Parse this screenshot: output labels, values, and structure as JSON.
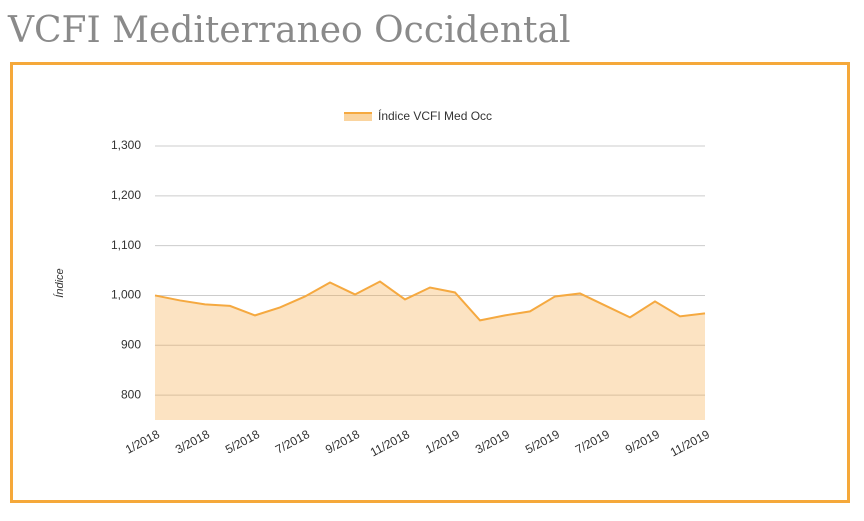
{
  "page_title": "VCFI Mediterraneo Occidental",
  "chart_data": {
    "type": "area",
    "y_label": "Índice",
    "categories": [
      "1/2018",
      null,
      "3/2018",
      null,
      "5/2018",
      null,
      "7/2018",
      null,
      "9/2018",
      null,
      "11/2018",
      null,
      "1/2019",
      null,
      "3/2019",
      null,
      "5/2019",
      null,
      "7/2019",
      null,
      "9/2019",
      null,
      "11/2019"
    ],
    "series": [
      {
        "name": "Índice VCFI Med Occ",
        "color": "#f5a940",
        "values": [
          1000,
          990,
          982,
          979,
          960,
          976,
          998,
          1026,
          1002,
          1028,
          992,
          1016,
          1006,
          950,
          960,
          968,
          998,
          1004,
          980,
          956,
          988,
          958,
          964
        ]
      }
    ],
    "ylim": [
      750,
      1300
    ],
    "yticks": [
      800,
      900,
      {
        "value": 1000,
        "label": "1,000"
      },
      {
        "value": 1100,
        "label": "1,100"
      },
      {
        "value": 1200,
        "label": "1,200"
      },
      {
        "value": 1300,
        "label": "1,300"
      }
    ],
    "grid": true,
    "legend": "top"
  }
}
